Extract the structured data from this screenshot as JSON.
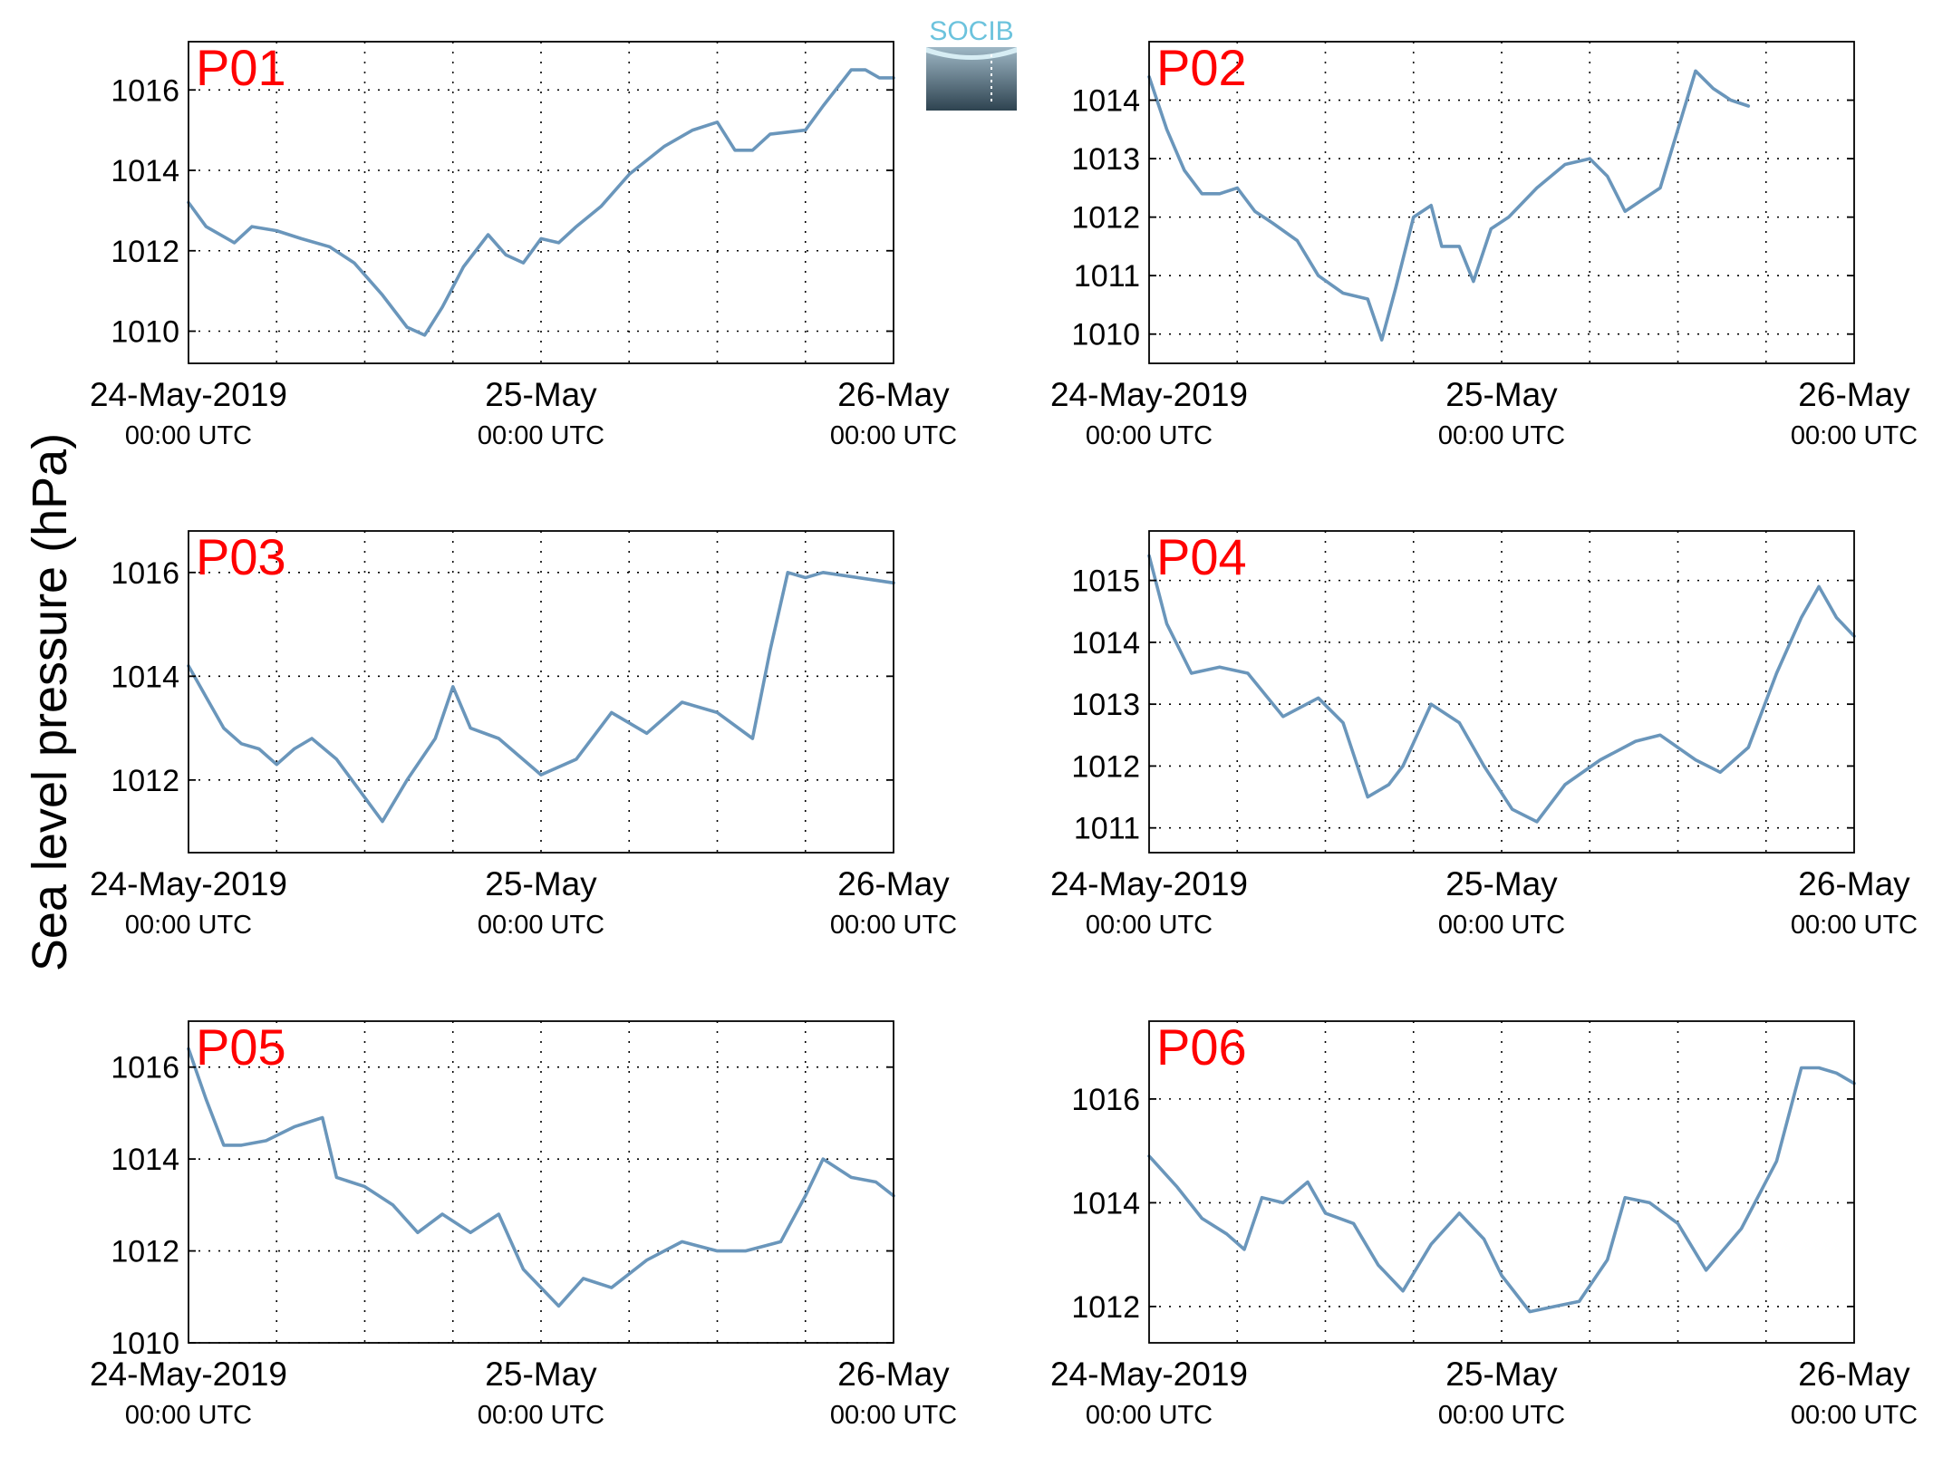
{
  "ylabel": "Sea level pressure (hPa)",
  "logo": {
    "text": "SOCIB",
    "color": "#6cc3dd"
  },
  "colors": {
    "line": "#6a96bb",
    "panel_label": "#ff0000",
    "grid": "#000000"
  },
  "chart_data": [
    {
      "type": "line",
      "panel_label": "P01",
      "x_ticks": [
        {
          "value": 0,
          "date": "24-May-2019",
          "time": "00:00 UTC"
        },
        {
          "value": 1,
          "date": "25-May",
          "time": "00:00 UTC"
        },
        {
          "value": 2,
          "date": "26-May",
          "time": "00:00 UTC"
        }
      ],
      "x_unit": "days since 24-May-2019 00:00 UTC",
      "xlim": [
        0,
        2
      ],
      "ylim": [
        1009.2,
        1017.2
      ],
      "yticks": [
        1010,
        1012,
        1014,
        1016
      ],
      "grid": true,
      "points": [
        [
          0.0,
          1013.2
        ],
        [
          0.05,
          1012.6
        ],
        [
          0.13,
          1012.2
        ],
        [
          0.18,
          1012.6
        ],
        [
          0.25,
          1012.5
        ],
        [
          0.32,
          1012.3
        ],
        [
          0.4,
          1012.1
        ],
        [
          0.47,
          1011.7
        ],
        [
          0.55,
          1010.9
        ],
        [
          0.62,
          1010.1
        ],
        [
          0.67,
          1009.9
        ],
        [
          0.72,
          1010.6
        ],
        [
          0.78,
          1011.6
        ],
        [
          0.85,
          1012.4
        ],
        [
          0.9,
          1011.9
        ],
        [
          0.95,
          1011.7
        ],
        [
          1.0,
          1012.3
        ],
        [
          1.05,
          1012.2
        ],
        [
          1.1,
          1012.6
        ],
        [
          1.17,
          1013.1
        ],
        [
          1.25,
          1013.9
        ],
        [
          1.35,
          1014.6
        ],
        [
          1.43,
          1015.0
        ],
        [
          1.5,
          1015.2
        ],
        [
          1.55,
          1014.5
        ],
        [
          1.6,
          1014.5
        ],
        [
          1.65,
          1014.9
        ],
        [
          1.75,
          1015.0
        ],
        [
          1.8,
          1015.6
        ],
        [
          1.88,
          1016.5
        ],
        [
          1.92,
          1016.5
        ],
        [
          1.96,
          1016.3
        ],
        [
          2.0,
          1016.3
        ]
      ]
    },
    {
      "type": "line",
      "panel_label": "P02",
      "x_ticks": [
        {
          "value": 0,
          "date": "24-May-2019",
          "time": "00:00 UTC"
        },
        {
          "value": 1,
          "date": "25-May",
          "time": "00:00 UTC"
        },
        {
          "value": 2,
          "date": "26-May",
          "time": "00:00 UTC"
        }
      ],
      "x_unit": "days since 24-May-2019 00:00 UTC",
      "xlim": [
        0,
        2
      ],
      "ylim": [
        1009.5,
        1015.0
      ],
      "yticks": [
        1010,
        1011,
        1012,
        1013,
        1014
      ],
      "grid": true,
      "points": [
        [
          0.0,
          1014.4
        ],
        [
          0.05,
          1013.5
        ],
        [
          0.1,
          1012.8
        ],
        [
          0.15,
          1012.4
        ],
        [
          0.2,
          1012.4
        ],
        [
          0.25,
          1012.5
        ],
        [
          0.3,
          1012.1
        ],
        [
          0.35,
          1011.9
        ],
        [
          0.42,
          1011.6
        ],
        [
          0.48,
          1011.0
        ],
        [
          0.55,
          1010.7
        ],
        [
          0.62,
          1010.6
        ],
        [
          0.66,
          1009.9
        ],
        [
          0.7,
          1010.8
        ],
        [
          0.75,
          1012.0
        ],
        [
          0.8,
          1012.2
        ],
        [
          0.83,
          1011.5
        ],
        [
          0.88,
          1011.5
        ],
        [
          0.92,
          1010.9
        ],
        [
          0.97,
          1011.8
        ],
        [
          1.02,
          1012.0
        ],
        [
          1.1,
          1012.5
        ],
        [
          1.18,
          1012.9
        ],
        [
          1.25,
          1013.0
        ],
        [
          1.3,
          1012.7
        ],
        [
          1.35,
          1012.1
        ],
        [
          1.4,
          1012.3
        ],
        [
          1.45,
          1012.5
        ],
        [
          1.5,
          1013.5
        ],
        [
          1.55,
          1014.5
        ],
        [
          1.6,
          1014.2
        ],
        [
          1.65,
          1014.0
        ],
        [
          1.7,
          1013.9
        ]
      ]
    },
    {
      "type": "line",
      "panel_label": "P03",
      "x_ticks": [
        {
          "value": 0,
          "date": "24-May-2019",
          "time": "00:00 UTC"
        },
        {
          "value": 1,
          "date": "25-May",
          "time": "00:00 UTC"
        },
        {
          "value": 2,
          "date": "26-May",
          "time": "00:00 UTC"
        }
      ],
      "x_unit": "days since 24-May-2019 00:00 UTC",
      "xlim": [
        0,
        2
      ],
      "ylim": [
        1010.6,
        1016.8
      ],
      "yticks": [
        1012,
        1014,
        1016
      ],
      "grid": true,
      "points": [
        [
          0.0,
          1014.2
        ],
        [
          0.05,
          1013.6
        ],
        [
          0.1,
          1013.0
        ],
        [
          0.15,
          1012.7
        ],
        [
          0.2,
          1012.6
        ],
        [
          0.25,
          1012.3
        ],
        [
          0.3,
          1012.6
        ],
        [
          0.35,
          1012.8
        ],
        [
          0.42,
          1012.4
        ],
        [
          0.55,
          1011.2
        ],
        [
          0.62,
          1012.0
        ],
        [
          0.7,
          1012.8
        ],
        [
          0.75,
          1013.8
        ],
        [
          0.8,
          1013.0
        ],
        [
          0.88,
          1012.8
        ],
        [
          1.0,
          1012.1
        ],
        [
          1.1,
          1012.4
        ],
        [
          1.2,
          1013.3
        ],
        [
          1.3,
          1012.9
        ],
        [
          1.4,
          1013.5
        ],
        [
          1.5,
          1013.3
        ],
        [
          1.6,
          1012.8
        ],
        [
          1.65,
          1014.5
        ],
        [
          1.7,
          1016.0
        ],
        [
          1.75,
          1015.9
        ],
        [
          1.8,
          1016.0
        ],
        [
          2.0,
          1015.8
        ]
      ]
    },
    {
      "type": "line",
      "panel_label": "P04",
      "x_ticks": [
        {
          "value": 0,
          "date": "24-May-2019",
          "time": "00:00 UTC"
        },
        {
          "value": 1,
          "date": "25-May",
          "time": "00:00 UTC"
        },
        {
          "value": 2,
          "date": "26-May",
          "time": "00:00 UTC"
        }
      ],
      "x_unit": "days since 24-May-2019 00:00 UTC",
      "xlim": [
        0,
        2
      ],
      "ylim": [
        1010.6,
        1015.8
      ],
      "yticks": [
        1011,
        1012,
        1013,
        1014,
        1015
      ],
      "grid": true,
      "points": [
        [
          0.0,
          1015.4
        ],
        [
          0.05,
          1014.3
        ],
        [
          0.12,
          1013.5
        ],
        [
          0.2,
          1013.6
        ],
        [
          0.28,
          1013.5
        ],
        [
          0.38,
          1012.8
        ],
        [
          0.48,
          1013.1
        ],
        [
          0.55,
          1012.7
        ],
        [
          0.62,
          1011.5
        ],
        [
          0.68,
          1011.7
        ],
        [
          0.72,
          1012.0
        ],
        [
          0.8,
          1013.0
        ],
        [
          0.88,
          1012.7
        ],
        [
          0.95,
          1012.0
        ],
        [
          1.03,
          1011.3
        ],
        [
          1.1,
          1011.1
        ],
        [
          1.18,
          1011.7
        ],
        [
          1.28,
          1012.1
        ],
        [
          1.38,
          1012.4
        ],
        [
          1.45,
          1012.5
        ],
        [
          1.55,
          1012.1
        ],
        [
          1.62,
          1011.9
        ],
        [
          1.7,
          1012.3
        ],
        [
          1.78,
          1013.5
        ],
        [
          1.85,
          1014.4
        ],
        [
          1.9,
          1014.9
        ],
        [
          1.95,
          1014.4
        ],
        [
          2.0,
          1014.1
        ]
      ]
    },
    {
      "type": "line",
      "panel_label": "P05",
      "x_ticks": [
        {
          "value": 0,
          "date": "24-May-2019",
          "time": "00:00 UTC"
        },
        {
          "value": 1,
          "date": "25-May",
          "time": "00:00 UTC"
        },
        {
          "value": 2,
          "date": "26-May",
          "time": "00:00 UTC"
        }
      ],
      "x_unit": "days since 24-May-2019 00:00 UTC",
      "xlim": [
        0,
        2
      ],
      "ylim": [
        1010.0,
        1017.0
      ],
      "yticks": [
        1010,
        1012,
        1014,
        1016
      ],
      "grid": true,
      "points": [
        [
          0.0,
          1016.4
        ],
        [
          0.05,
          1015.3
        ],
        [
          0.1,
          1014.3
        ],
        [
          0.15,
          1014.3
        ],
        [
          0.22,
          1014.4
        ],
        [
          0.3,
          1014.7
        ],
        [
          0.38,
          1014.9
        ],
        [
          0.42,
          1013.6
        ],
        [
          0.5,
          1013.4
        ],
        [
          0.58,
          1013.0
        ],
        [
          0.65,
          1012.4
        ],
        [
          0.72,
          1012.8
        ],
        [
          0.8,
          1012.4
        ],
        [
          0.88,
          1012.8
        ],
        [
          0.95,
          1011.6
        ],
        [
          1.05,
          1010.8
        ],
        [
          1.12,
          1011.4
        ],
        [
          1.2,
          1011.2
        ],
        [
          1.3,
          1011.8
        ],
        [
          1.4,
          1012.2
        ],
        [
          1.5,
          1012.0
        ],
        [
          1.58,
          1012.0
        ],
        [
          1.68,
          1012.2
        ],
        [
          1.75,
          1013.2
        ],
        [
          1.8,
          1014.0
        ],
        [
          1.88,
          1013.6
        ],
        [
          1.95,
          1013.5
        ],
        [
          2.0,
          1013.2
        ]
      ]
    },
    {
      "type": "line",
      "panel_label": "P06",
      "x_ticks": [
        {
          "value": 0,
          "date": "24-May-2019",
          "time": "00:00 UTC"
        },
        {
          "value": 1,
          "date": "25-May",
          "time": "00:00 UTC"
        },
        {
          "value": 2,
          "date": "26-May",
          "time": "00:00 UTC"
        }
      ],
      "x_unit": "days since 24-May-2019 00:00 UTC",
      "xlim": [
        0,
        2
      ],
      "ylim": [
        1011.3,
        1017.5
      ],
      "yticks": [
        1012,
        1014,
        1016
      ],
      "grid": true,
      "points": [
        [
          0.0,
          1014.9
        ],
        [
          0.08,
          1014.3
        ],
        [
          0.15,
          1013.7
        ],
        [
          0.22,
          1013.4
        ],
        [
          0.27,
          1013.1
        ],
        [
          0.32,
          1014.1
        ],
        [
          0.38,
          1014.0
        ],
        [
          0.45,
          1014.4
        ],
        [
          0.5,
          1013.8
        ],
        [
          0.58,
          1013.6
        ],
        [
          0.65,
          1012.8
        ],
        [
          0.72,
          1012.3
        ],
        [
          0.8,
          1013.2
        ],
        [
          0.88,
          1013.8
        ],
        [
          0.95,
          1013.3
        ],
        [
          1.0,
          1012.6
        ],
        [
          1.08,
          1011.9
        ],
        [
          1.15,
          1012.0
        ],
        [
          1.22,
          1012.1
        ],
        [
          1.3,
          1012.9
        ],
        [
          1.35,
          1014.1
        ],
        [
          1.42,
          1014.0
        ],
        [
          1.5,
          1013.6
        ],
        [
          1.58,
          1012.7
        ],
        [
          1.68,
          1013.5
        ],
        [
          1.78,
          1014.8
        ],
        [
          1.85,
          1016.6
        ],
        [
          1.9,
          1016.6
        ],
        [
          1.95,
          1016.5
        ],
        [
          2.0,
          1016.3
        ]
      ]
    }
  ]
}
